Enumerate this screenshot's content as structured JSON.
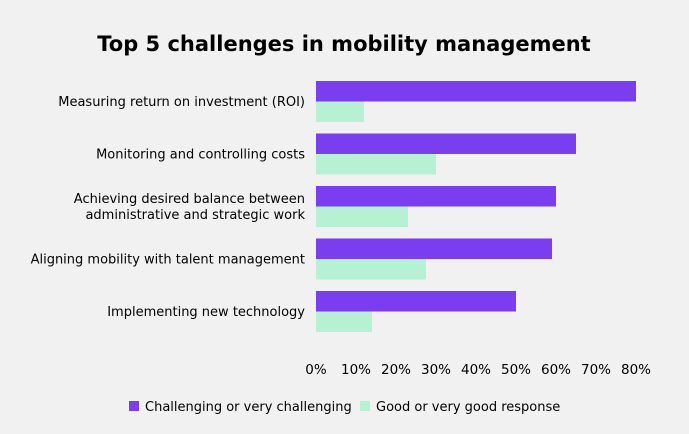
{
  "chart_data": {
    "type": "bar",
    "orientation": "horizontal",
    "title": "Top 5 challenges in mobility management",
    "xlabel": "",
    "ylabel": "",
    "categories": [
      [
        "Measuring return on investment (ROI)"
      ],
      [
        "Monitoring and controlling costs"
      ],
      [
        "Achieving desired balance between",
        "administrative and strategic work"
      ],
      [
        "Aligning mobility with talent management"
      ],
      [
        "Implementing new technology"
      ]
    ],
    "series": [
      {
        "name": "Challenging or very challenging",
        "color": "#7a3df0",
        "values": [
          80,
          65,
          60,
          59,
          50
        ]
      },
      {
        "name": "Good or very good response",
        "color": "#b5f1d2",
        "values": [
          12,
          30,
          23,
          27.5,
          14
        ]
      }
    ],
    "xlim": [
      0,
      80
    ],
    "xticks": [
      0,
      10,
      20,
      30,
      40,
      50,
      60,
      70,
      80
    ],
    "tick_suffix": "%",
    "grid": false,
    "legend_position": "bottom"
  }
}
